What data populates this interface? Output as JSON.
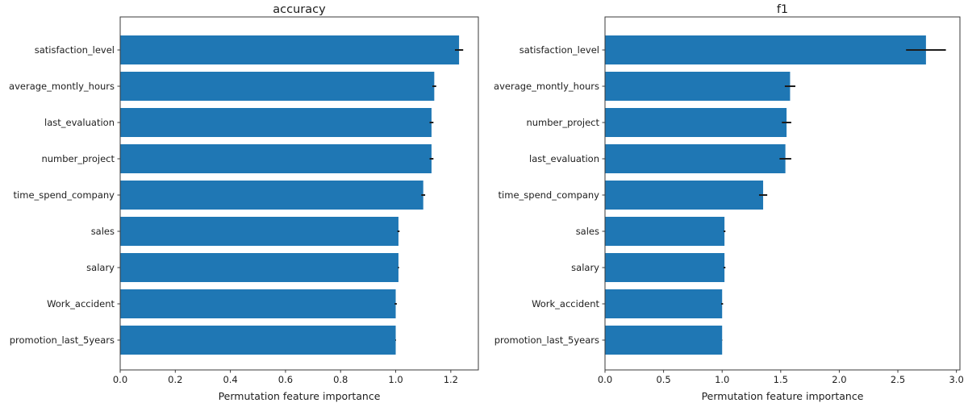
{
  "figure": {
    "background": "#ffffff",
    "bar_color": "#1f77b4",
    "error_color": "#1c1c1c",
    "spine_color": "#3a3a3a",
    "text_color": "#1d1d1d"
  },
  "chart_data": [
    {
      "type": "bar",
      "orientation": "horizontal",
      "title": "accuracy",
      "xlabel": "Permutation feature importance",
      "ylabel": "",
      "categories": [
        "satisfaction_level",
        "average_montly_hours",
        "last_evaluation",
        "number_project",
        "time_spend_company",
        "sales",
        "salary",
        "Work_accident",
        "promotion_last_5years"
      ],
      "values": [
        1.23,
        1.14,
        1.13,
        1.13,
        1.1,
        1.01,
        1.01,
        1.0,
        1.0
      ],
      "errors": [
        0.015,
        0.007,
        0.007,
        0.007,
        0.007,
        0.004,
        0.002,
        0.004,
        0.001
      ],
      "xlim": [
        0,
        1.3
      ],
      "xticks": [
        0,
        0.2,
        0.4,
        0.6,
        0.8,
        1.0,
        1.2
      ],
      "xtick_labels": [
        "0.0",
        "0.2",
        "0.4",
        "0.6",
        "0.8",
        "1.0",
        "1.2"
      ],
      "grid": false,
      "legend": null
    },
    {
      "type": "bar",
      "orientation": "horizontal",
      "title": "f1",
      "xlabel": "Permutation feature importance",
      "ylabel": "",
      "categories": [
        "satisfaction_level",
        "average_montly_hours",
        "number_project",
        "last_evaluation",
        "time_spend_company",
        "sales",
        "salary",
        "Work_accident",
        "promotion_last_5years"
      ],
      "values": [
        2.74,
        1.58,
        1.55,
        1.54,
        1.35,
        1.02,
        1.02,
        1.0,
        1.0
      ],
      "errors": [
        0.17,
        0.045,
        0.04,
        0.05,
        0.035,
        0.008,
        0.008,
        0.008,
        0.001
      ],
      "xlim": [
        0,
        3.03
      ],
      "xticks": [
        0,
        0.5,
        1.0,
        1.5,
        2.0,
        2.5,
        3.0
      ],
      "xtick_labels": [
        "0.0",
        "0.5",
        "1.0",
        "1.5",
        "2.0",
        "2.5",
        "3.0"
      ],
      "grid": false,
      "legend": null
    }
  ]
}
